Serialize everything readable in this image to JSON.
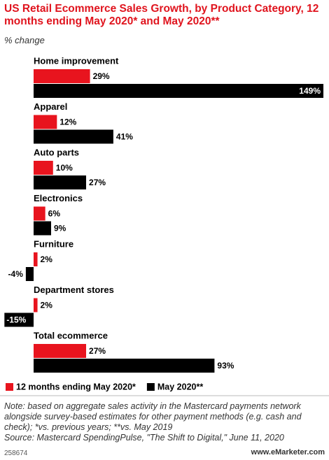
{
  "chart_data": {
    "type": "hbar",
    "title": "US Retail Ecommerce Sales Growth, by Product Category, 12 months ending May 2020* and May 2020**",
    "subtitle": "% change",
    "categories": [
      "Home improvement",
      "Apparel",
      "Auto parts",
      "Electronics",
      "Furniture",
      "Department stores",
      "Total ecommerce"
    ],
    "series": [
      {
        "name": "12 months ending May 2020*",
        "color": "#e8141e",
        "values": [
          29,
          12,
          10,
          6,
          2,
          2,
          27
        ],
        "value_labels": [
          "29%",
          "12%",
          "10%",
          "6%",
          "2%",
          "2%",
          "27%"
        ]
      },
      {
        "name": "May 2020**",
        "color": "#000000",
        "values": [
          149,
          41,
          27,
          9,
          -4,
          -15,
          93
        ],
        "value_labels": [
          "149%",
          "41%",
          "27%",
          "9%",
          "-4%",
          "-15%",
          "93%"
        ]
      }
    ],
    "note": "Note: based on aggregate sales activity in the Mastercard payments network alongside survey-based estimates for other payment methods (e.g. cash and check); *vs. previous years; **vs. May 2019",
    "source": "Source: Mastercard SpendingPulse, \"The Shift to Digital,\" June 11, 2020",
    "chart_id": "258674",
    "website": "www.eMarketer.com"
  }
}
